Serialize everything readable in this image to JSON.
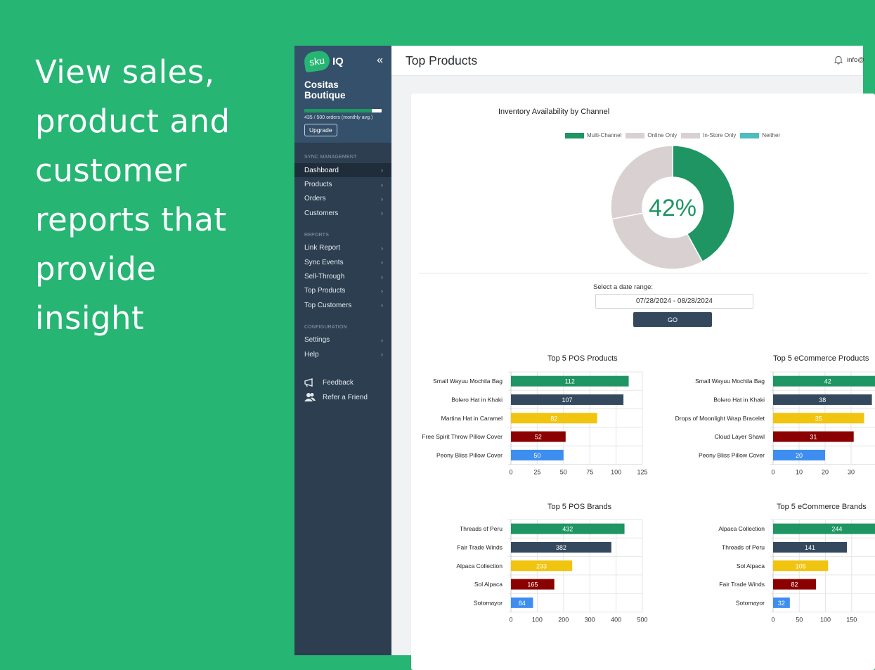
{
  "promo": {
    "text": "View sales, product and customer reports that provide insight"
  },
  "sidebar": {
    "logo_sku": "sku",
    "logo_iq": "IQ",
    "collapse_icon": "double-chevron-left-icon",
    "store_name": "Cositas Boutique",
    "usage": {
      "fraction": 0.87,
      "text": "435 / 500 orders (monthly avg.)"
    },
    "upgrade_label": "Upgrade",
    "sections": [
      {
        "title": "SYNC MANAGEMENT",
        "items": [
          "Dashboard",
          "Products",
          "Orders",
          "Customers"
        ]
      },
      {
        "title": "REPORTS",
        "items": [
          "Link Report",
          "Sync Events",
          "Sell-Through",
          "Top Products",
          "Top Customers"
        ]
      },
      {
        "title": "CONFIGURATION",
        "items": [
          "Settings",
          "Help"
        ]
      }
    ],
    "active_item": "Dashboard",
    "extras": [
      {
        "label": "Feedback",
        "icon": "megaphone-icon"
      },
      {
        "label": "Refer a Friend",
        "icon": "users-icon"
      }
    ]
  },
  "header": {
    "title": "Top Products",
    "user_text": "info@",
    "bell_icon": "bell-icon"
  },
  "filter": {
    "label": "Select a date range:",
    "value": "07/28/2024 - 08/28/2024",
    "go_label": "GO"
  },
  "colors": {
    "green": "#1e9562",
    "navy": "#34495e",
    "yellow": "#f1c40f",
    "maroon": "#8b0000",
    "blue": "#3d8ef0",
    "grey": "#d8d0d1",
    "teal": "#4dbdbd"
  },
  "chart_data": [
    {
      "type": "pie",
      "title": "Inventory Availability by Channel",
      "center_label": "42%",
      "legend": [
        "Multi-Channel",
        "Online Only",
        "In-Store Only",
        "Neither"
      ],
      "values": [
        42,
        30,
        28,
        0
      ]
    },
    {
      "type": "bar",
      "title": "Top 5 POS Products",
      "categories": [
        "Small Wayuu Mochila Bag",
        "Bolero Hat in Khaki",
        "Martina Hat in Caramel",
        "Free Spirit Throw Pillow Cover",
        "Peony Bliss Pillow Cover"
      ],
      "values": [
        112,
        107,
        82,
        52,
        50
      ],
      "xlim": [
        0,
        125
      ],
      "ticks": [
        0,
        25,
        50,
        75,
        100,
        125
      ]
    },
    {
      "type": "bar",
      "title": "Top 5 eCommerce Products",
      "categories": [
        "Small Wayuu Mochila Bag",
        "Bolero Hat in Khaki",
        "Drops of Moonlight Wrap Bracelet",
        "Cloud Layer Shawl",
        "Peony Bliss Pillow Cover"
      ],
      "values": [
        42,
        38,
        35,
        31,
        20
      ],
      "xlim": [
        0,
        50
      ],
      "ticks": [
        0,
        10,
        20,
        30
      ]
    },
    {
      "type": "bar",
      "title": "Top 5 POS Brands",
      "categories": [
        "Threads of Peru",
        "Fair Trade Winds",
        "Alpaca Collection",
        "Sol Alpaca",
        "Sotomayor"
      ],
      "values": [
        432,
        382,
        233,
        165,
        84
      ],
      "xlim": [
        0,
        500
      ],
      "ticks": [
        0,
        100,
        200,
        300,
        400,
        500
      ]
    },
    {
      "type": "bar",
      "title": "Top 5 eCommerce Brands",
      "categories": [
        "Alpaca Collection",
        "Threads of Peru",
        "Sol Alpaca",
        "Fair Trade Winds",
        "Sotomayor"
      ],
      "values": [
        244,
        141,
        105,
        82,
        32
      ],
      "xlim": [
        0,
        250
      ],
      "ticks": [
        0,
        50,
        100,
        150
      ]
    }
  ]
}
